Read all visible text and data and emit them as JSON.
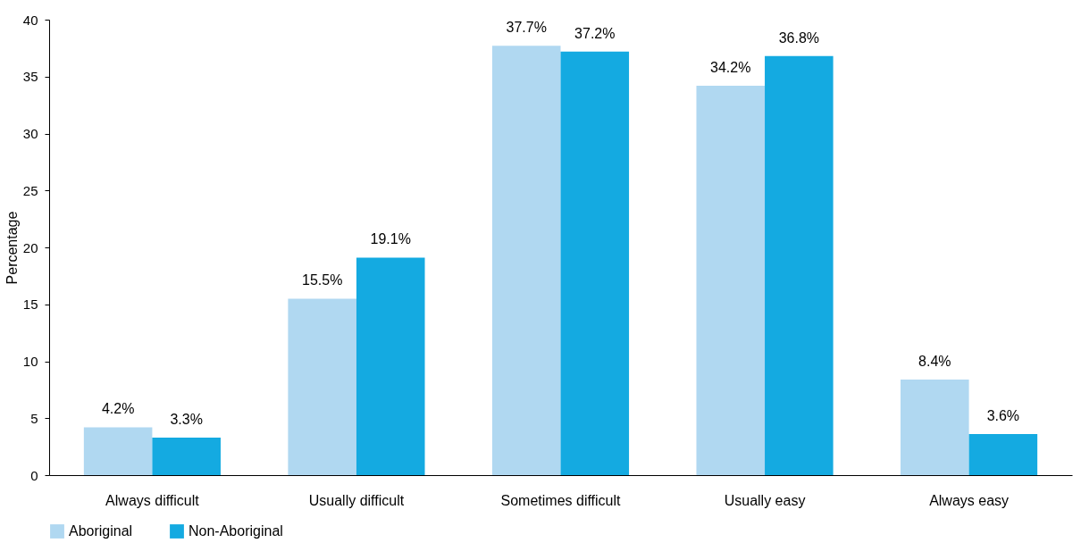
{
  "chart_data": {
    "type": "bar",
    "ylabel": "Percentage",
    "categories": [
      "Always difficult",
      "Usually difficult",
      "Sometimes difficult",
      "Usually easy",
      "Always easy"
    ],
    "series": [
      {
        "name": "Aboriginal",
        "color": "#b0d8f1",
        "values": [
          4.2,
          15.5,
          37.7,
          34.2,
          8.4
        ],
        "value_labels": [
          "4.2%",
          "15.5%",
          "37.7%",
          "34.2%",
          "8.4%"
        ]
      },
      {
        "name": "Non-Aboriginal",
        "color": "#14aae1",
        "values": [
          3.3,
          19.1,
          37.2,
          36.8,
          3.6
        ],
        "value_labels": [
          "3.3%",
          "19.1%",
          "37.2%",
          "36.8%",
          "3.6%"
        ]
      }
    ],
    "ylim": [
      0,
      40
    ],
    "yticks": [
      0,
      5,
      10,
      15,
      20,
      25,
      30,
      35,
      40
    ],
    "grid": false,
    "legend": "bottom"
  }
}
